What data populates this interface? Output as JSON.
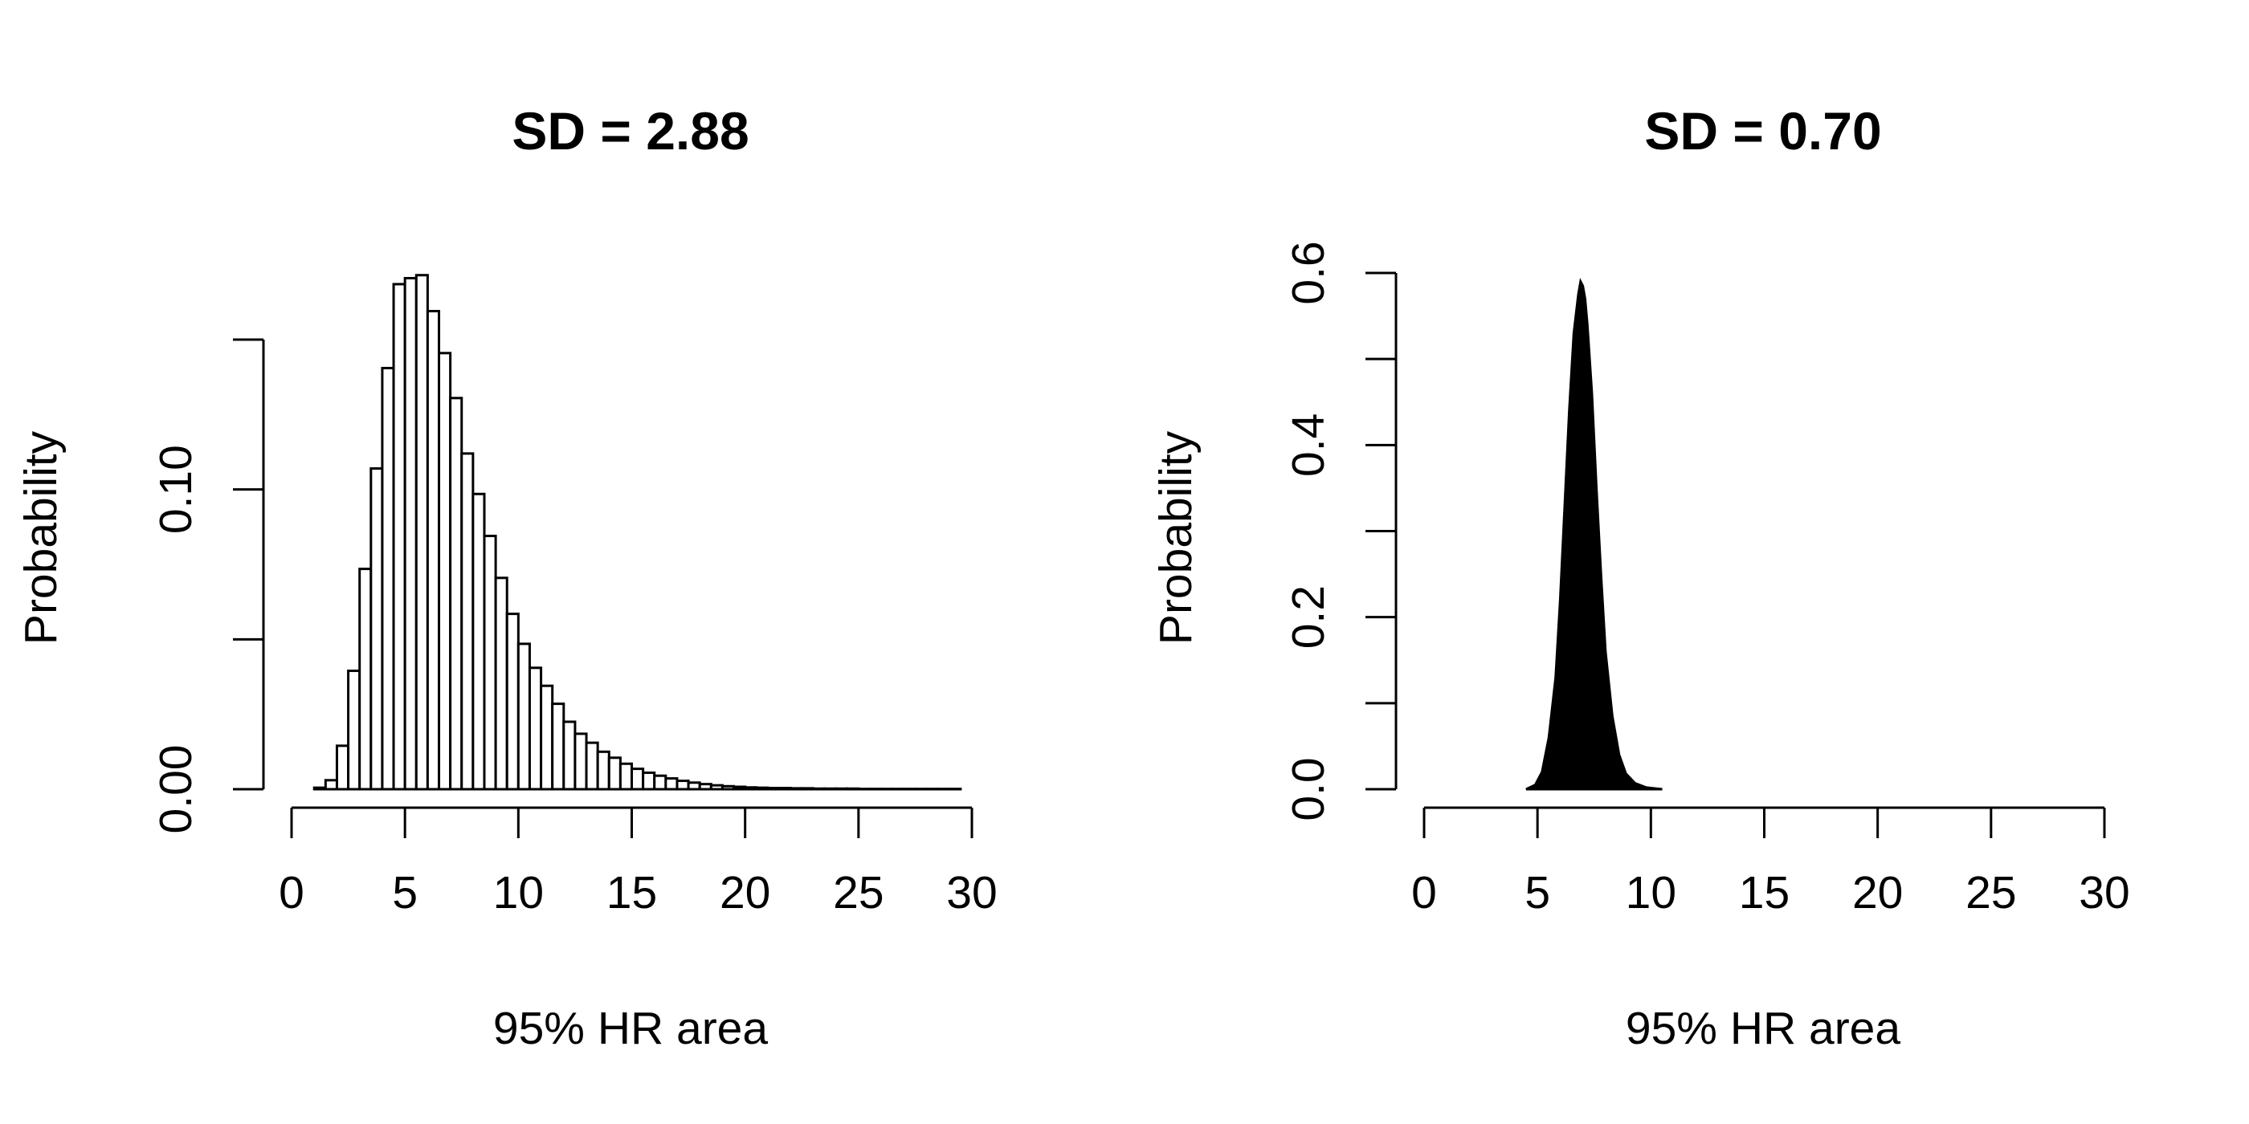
{
  "chart_data": [
    {
      "type": "bar",
      "title": "SD = 2.88",
      "xlabel": "95% HR area",
      "ylabel": "Probability",
      "xlim": [
        0,
        30
      ],
      "ylim": [
        0,
        0.15
      ],
      "x_ticks": [
        0,
        5,
        10,
        15,
        20,
        25,
        30
      ],
      "x_tick_labels": [
        "0",
        "5",
        "10",
        "15",
        "20",
        "25",
        "30"
      ],
      "y_ticks": [
        0,
        0.05,
        0.1,
        0.15
      ],
      "y_tick_labels": [
        "0.00",
        "",
        "0.10",
        ""
      ],
      "bin_width": 0.5,
      "bins_start": 1.0,
      "values": [
        0.0005,
        0.003,
        0.0145,
        0.0395,
        0.0735,
        0.107,
        0.1405,
        0.1685,
        0.1705,
        0.1715,
        0.1595,
        0.1455,
        0.1305,
        0.112,
        0.0985,
        0.0845,
        0.0705,
        0.0585,
        0.0485,
        0.0405,
        0.0345,
        0.0285,
        0.0225,
        0.0185,
        0.0155,
        0.0125,
        0.0105,
        0.0085,
        0.0068,
        0.0055,
        0.0045,
        0.0036,
        0.0028,
        0.0022,
        0.0017,
        0.0013,
        0.001,
        0.0008,
        0.0006,
        0.0005,
        0.0004,
        0.0004,
        0.0003,
        0.0003,
        0.0002,
        0.0002,
        0.0002,
        0.0002,
        0.0001,
        0.0001,
        0.0001,
        0.0001,
        0.0001,
        0.0001,
        0.0001,
        0.0001,
        0.0001,
        0.0,
        0.0,
        0.0
      ],
      "fill": "#ffffff",
      "stroke": "#000000"
    },
    {
      "type": "area",
      "title": "SD = 0.70",
      "xlabel": "95% HR area",
      "ylabel": "Probability",
      "xlim": [
        0,
        30
      ],
      "ylim": [
        0,
        0.6
      ],
      "x_ticks": [
        0,
        5,
        10,
        15,
        20,
        25,
        30
      ],
      "x_tick_labels": [
        "0",
        "5",
        "10",
        "15",
        "20",
        "25",
        "30"
      ],
      "y_ticks": [
        0,
        0.1,
        0.2,
        0.3,
        0.4,
        0.5,
        0.6
      ],
      "y_tick_labels": [
        "0.0",
        "",
        "0.2",
        "",
        "0.4",
        "",
        "0.6"
      ],
      "x": [
        4.5,
        4.9,
        5.2,
        5.5,
        5.8,
        6.0,
        6.2,
        6.4,
        6.6,
        6.8,
        6.9,
        7.0,
        7.1,
        7.2,
        7.4,
        7.6,
        7.8,
        8.0,
        8.3,
        8.6,
        8.9,
        9.3,
        9.8,
        10.5
      ],
      "y": [
        0.0,
        0.005,
        0.02,
        0.06,
        0.13,
        0.22,
        0.33,
        0.44,
        0.53,
        0.575,
        0.59,
        0.585,
        0.57,
        0.54,
        0.46,
        0.35,
        0.25,
        0.16,
        0.085,
        0.04,
        0.018,
        0.007,
        0.002,
        0.0
      ],
      "fill": "#000000",
      "stroke": "#000000"
    }
  ]
}
